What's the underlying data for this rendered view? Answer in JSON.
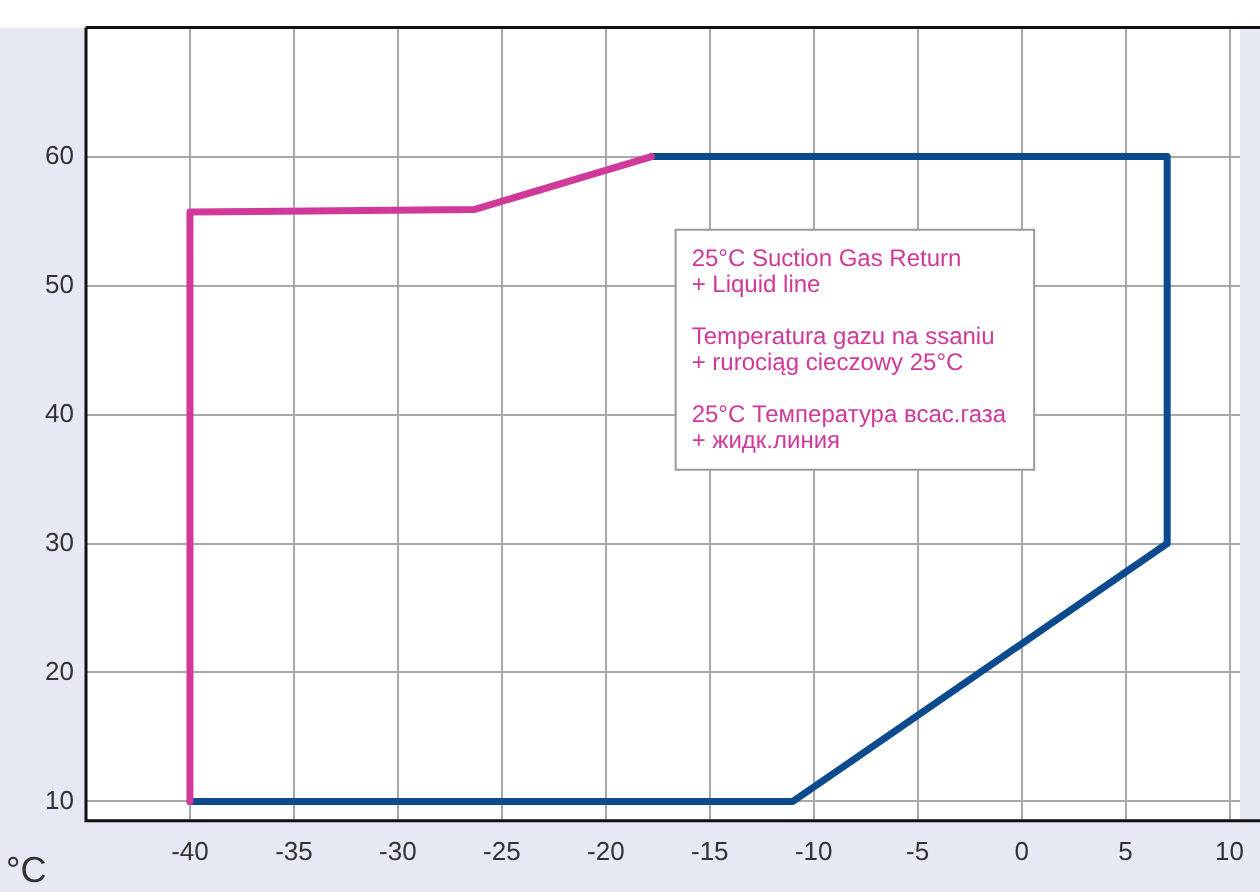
{
  "chart_data": {
    "type": "line",
    "xlabel": "°C",
    "xlim": [
      -45,
      10.5
    ],
    "ylim": [
      8.5,
      70
    ],
    "xticks": [
      -40,
      -35,
      -30,
      -25,
      -20,
      -15,
      -10,
      -5,
      0,
      5,
      10
    ],
    "yticks": [
      10,
      20,
      30,
      40,
      50,
      60
    ],
    "grid": true,
    "marker": "none",
    "line_style": "solid",
    "series": [
      {
        "name": "25°C Suction Gas Return\n+ Liquid line\n\nTemperatura gazu na ssaniu\n+ rurociąg cieczowy 25°C\n\n25°C Температура всас.газа\n+ жидк.линия",
        "color": "#d0389a",
        "x": [
          -40,
          -40,
          -26.3,
          -17.8
        ],
        "values": [
          10,
          55.7,
          55.9,
          60
        ]
      },
      {
        "color": "#0b4a8c",
        "x": [
          -17.8,
          7,
          7,
          -11,
          -40
        ],
        "values": [
          60,
          60,
          30,
          10,
          10
        ]
      }
    ]
  }
}
